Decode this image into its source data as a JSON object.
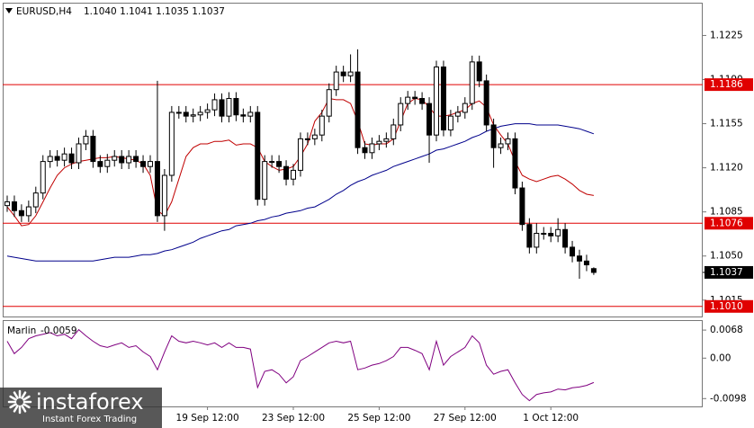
{
  "header": {
    "symbol": "EURUSD,H4",
    "ohlc": "1.1040 1.1041 1.1035 1.1037"
  },
  "watermark": {
    "brand": "instaforex",
    "tagline": "Instant Forex Trading"
  },
  "chart_data": [
    {
      "type": "candlestick",
      "ylim": [
        1.1002,
        1.1251
      ],
      "yticks": [
        1.1225,
        {
          "value": 1.119,
          "label": "1.1190"
        },
        1.1155,
        {
          "value": 1.112,
          "label": "1.1120"
        },
        1.1085,
        {
          "value": 1.105,
          "label": "1.1050"
        },
        1.1015
      ],
      "xticks": [
        {
          "value": 28,
          "label": "19 Sep 12:00"
        },
        {
          "value": 40,
          "label": "23 Sep 12:00"
        },
        {
          "value": 52,
          "label": "25 Sep 12:00"
        },
        {
          "value": 64,
          "label": "27 Sep 12:00"
        },
        {
          "value": 76,
          "label": "1 Oct 12:00"
        }
      ],
      "hlines": [
        1.1186,
        1.1076,
        {
          "value": 1.101,
          "label": "1.1010"
        }
      ],
      "hline_color": "#e00000",
      "up_color": "#ffffff",
      "down_color": "#000000",
      "open": [
        1.109,
        1.1093,
        1.1086,
        1.1082,
        1.1089,
        1.11,
        1.1125,
        1.1129,
        1.1126,
        1.1131,
        1.1124,
        1.1139,
        1.1145,
        1.1125,
        1.1121,
        1.1126,
        1.1129,
        1.1124,
        1.1129,
        1.1125,
        1.1121,
        1.1125,
        1.1082,
        1.1114,
        1.1164,
        1.1164,
        1.1161,
        1.1162,
        1.1164,
        1.1166,
        1.1174,
        1.1161,
        1.1175,
        1.1162,
        1.1161,
        1.1164,
        1.1095,
        1.1125,
        1.1125,
        1.1121,
        1.1111,
        1.1118,
        1.1143,
        1.1143,
        1.1146,
        1.1161,
        1.1182,
        1.1196,
        1.1193,
        1.1196,
        1.1136,
        1.1132,
        1.1139,
        1.1141,
        1.1143,
        1.1154,
        1.1171,
        1.1176,
        1.1175,
        1.1171,
        1.1146,
        1.12,
        1.115,
        1.1161,
        1.1164,
        1.1171,
        1.1204,
        1.1189,
        1.1154,
        1.1136,
        1.1139,
        1.1143,
        1.1104,
        1.1075,
        1.1057,
        1.1068,
        1.1068,
        1.1066,
        1.1071,
        1.1057,
        1.105,
        1.1046,
        1.104
      ],
      "high": [
        1.1098,
        1.1098,
        1.1091,
        1.1094,
        1.1105,
        1.113,
        1.1134,
        1.1134,
        1.1136,
        1.1136,
        1.1144,
        1.115,
        1.115,
        1.113,
        1.1131,
        1.1134,
        1.1134,
        1.1134,
        1.1134,
        1.113,
        1.113,
        1.1189,
        1.1119,
        1.1169,
        1.1169,
        1.1169,
        1.1167,
        1.1169,
        1.1171,
        1.1179,
        1.1179,
        1.118,
        1.118,
        1.1167,
        1.1169,
        1.1169,
        1.113,
        1.113,
        1.113,
        1.1126,
        1.1123,
        1.1148,
        1.1148,
        1.1151,
        1.1166,
        1.1187,
        1.1201,
        1.1201,
        1.121,
        1.1214,
        1.1141,
        1.1144,
        1.1146,
        1.1148,
        1.1159,
        1.1176,
        1.1181,
        1.1181,
        1.118,
        1.1176,
        1.1205,
        1.1205,
        1.1166,
        1.1169,
        1.1176,
        1.1209,
        1.1209,
        1.1194,
        1.1159,
        1.1144,
        1.1148,
        1.1148,
        1.1109,
        1.108,
        1.1076,
        1.1073,
        1.1073,
        1.108,
        1.1076,
        1.1062,
        1.1055,
        1.1051,
        1.1041
      ],
      "low": [
        1.1085,
        1.1081,
        1.1077,
        1.1077,
        1.1084,
        1.1095,
        1.112,
        1.1121,
        1.1121,
        1.1119,
        1.1119,
        1.1134,
        1.112,
        1.1116,
        1.1116,
        1.1121,
        1.1119,
        1.1119,
        1.112,
        1.1116,
        1.1116,
        1.1077,
        1.107,
        1.1109,
        1.1159,
        1.1156,
        1.1156,
        1.1157,
        1.1159,
        1.1161,
        1.1156,
        1.1156,
        1.1157,
        1.1156,
        1.1156,
        1.109,
        1.109,
        1.112,
        1.1116,
        1.1106,
        1.1106,
        1.1113,
        1.1138,
        1.1138,
        1.1141,
        1.1156,
        1.1177,
        1.1188,
        1.1188,
        1.1131,
        1.1127,
        1.1127,
        1.1134,
        1.1136,
        1.1138,
        1.1149,
        1.1166,
        1.117,
        1.1166,
        1.1124,
        1.1141,
        1.1145,
        1.1145,
        1.1156,
        1.1159,
        1.1166,
        1.1184,
        1.1149,
        1.112,
        1.1131,
        1.1134,
        1.1099,
        1.107,
        1.1052,
        1.1052,
        1.1063,
        1.1061,
        1.1061,
        1.1052,
        1.1045,
        1.1032,
        1.1038,
        1.1035
      ],
      "close": [
        1.1093,
        1.1086,
        1.1082,
        1.1089,
        1.11,
        1.1125,
        1.1129,
        1.1126,
        1.1131,
        1.1124,
        1.1139,
        1.1145,
        1.1125,
        1.1121,
        1.1126,
        1.1129,
        1.1124,
        1.1129,
        1.1125,
        1.1121,
        1.1125,
        1.1082,
        1.1114,
        1.1164,
        1.1164,
        1.1161,
        1.1162,
        1.1164,
        1.1166,
        1.1174,
        1.1161,
        1.1175,
        1.1162,
        1.1161,
        1.1164,
        1.1095,
        1.1125,
        1.1125,
        1.1121,
        1.1111,
        1.1118,
        1.1143,
        1.1143,
        1.1146,
        1.1161,
        1.1182,
        1.1196,
        1.1193,
        1.1196,
        1.1136,
        1.1132,
        1.1139,
        1.1141,
        1.1143,
        1.1154,
        1.1171,
        1.1176,
        1.1175,
        1.1171,
        1.1146,
        1.12,
        1.115,
        1.1161,
        1.1164,
        1.1171,
        1.1204,
        1.1189,
        1.1154,
        1.1136,
        1.1139,
        1.1143,
        1.1104,
        1.1075,
        1.1057,
        1.1068,
        1.1068,
        1.1066,
        1.1071,
        1.1057,
        1.105,
        1.1046,
        1.1043,
        1.1037
      ],
      "overlays": [
        {
          "color": "#c00000",
          "values": [
            1.1089,
            1.1082,
            1.1074,
            1.1075,
            1.1082,
            1.1093,
            1.1104,
            1.1114,
            1.112,
            1.1123,
            1.1125,
            1.1126,
            1.1127,
            1.1128,
            1.1128,
            1.1129,
            1.1128,
            1.1127,
            1.1126,
            1.1123,
            1.1114,
            1.1086,
            1.1082,
            1.1093,
            1.1111,
            1.1129,
            1.1136,
            1.1139,
            1.1139,
            1.1141,
            1.1141,
            1.1142,
            1.1138,
            1.1139,
            1.1139,
            1.1136,
            1.1125,
            1.1121,
            1.1118,
            1.1119,
            1.1121,
            1.1129,
            1.1139,
            1.1157,
            1.1164,
            1.1175,
            1.1174,
            1.1174,
            1.1171,
            1.1157,
            1.1139,
            1.1138,
            1.1139,
            1.1139,
            1.1143,
            1.1157,
            1.1171,
            1.1175,
            1.1174,
            1.1168,
            1.1161,
            1.1161,
            1.1162,
            1.1164,
            1.1166,
            1.1171,
            1.1173,
            1.1168,
            1.1154,
            1.1146,
            1.1139,
            1.1125,
            1.1114,
            1.1111,
            1.1109,
            1.1111,
            1.1113,
            1.1114,
            1.1111,
            1.1107,
            1.1102,
            1.1099,
            1.1098
          ]
        },
        {
          "color": "#00008b",
          "values": [
            1.105,
            1.1049,
            1.1048,
            1.1047,
            1.1046,
            1.1046,
            1.1046,
            1.1046,
            1.1046,
            1.1046,
            1.1046,
            1.1046,
            1.1046,
            1.1047,
            1.1048,
            1.1049,
            1.1049,
            1.1049,
            1.105,
            1.1051,
            1.1051,
            1.1052,
            1.1054,
            1.1055,
            1.1057,
            1.1059,
            1.1061,
            1.1064,
            1.1066,
            1.1068,
            1.107,
            1.1071,
            1.1074,
            1.1075,
            1.1076,
            1.1078,
            1.1079,
            1.1081,
            1.1082,
            1.1084,
            1.1085,
            1.1086,
            1.1088,
            1.1089,
            1.1092,
            1.1095,
            1.1099,
            1.1102,
            1.1106,
            1.1109,
            1.1111,
            1.1114,
            1.1116,
            1.1118,
            1.1121,
            1.1123,
            1.1125,
            1.1127,
            1.1129,
            1.1131,
            1.1134,
            1.1135,
            1.1137,
            1.1139,
            1.1141,
            1.1144,
            1.1146,
            1.1149,
            1.1151,
            1.1153,
            1.1154,
            1.1155,
            1.1155,
            1.1155,
            1.1154,
            1.1154,
            1.1154,
            1.1154,
            1.1153,
            1.1152,
            1.1151,
            1.1149,
            1.1147
          ]
        }
      ]
    },
    {
      "type": "line",
      "title": "Marlin",
      "color": "#800080",
      "ylim": [
        -0.0117,
        0.009
      ],
      "yticks": [
        0.0068,
        {
          "value": 0,
          "label": "0.00"
        },
        -0.0098
      ],
      "values": [
        0.0041,
        0.0011,
        0.0026,
        0.0047,
        0.0054,
        0.0058,
        0.0062,
        0.0054,
        0.0058,
        0.0047,
        0.0069,
        0.0054,
        0.0041,
        0.003,
        0.0026,
        0.0032,
        0.0037,
        0.0026,
        0.003,
        0.0015,
        0.0004,
        -0.0028,
        0.0015,
        0.0054,
        0.0041,
        0.0037,
        0.0041,
        0.0037,
        0.0032,
        0.0037,
        0.0026,
        0.0037,
        0.0026,
        0.0026,
        0.0022,
        -0.0071,
        -0.0032,
        -0.0028,
        -0.0039,
        -0.006,
        -0.0045,
        -0.0006,
        0.0004,
        0.0015,
        0.0026,
        0.0037,
        0.0041,
        0.0037,
        0.0041,
        -0.0028,
        -0.0024,
        -0.0017,
        -0.0013,
        -0.0006,
        0.0004,
        0.0026,
        0.0026,
        0.0019,
        0.0011,
        -0.0028,
        0.0041,
        -0.0017,
        0.0004,
        0.0015,
        0.0026,
        0.0054,
        0.0037,
        -0.0017,
        -0.0039,
        -0.0032,
        -0.0028,
        -0.006,
        -0.0088,
        -0.0103,
        -0.0088,
        -0.0084,
        -0.0082,
        -0.0075,
        -0.0077,
        -0.0072,
        -0.007,
        -0.0066,
        -0.0059
      ]
    }
  ]
}
